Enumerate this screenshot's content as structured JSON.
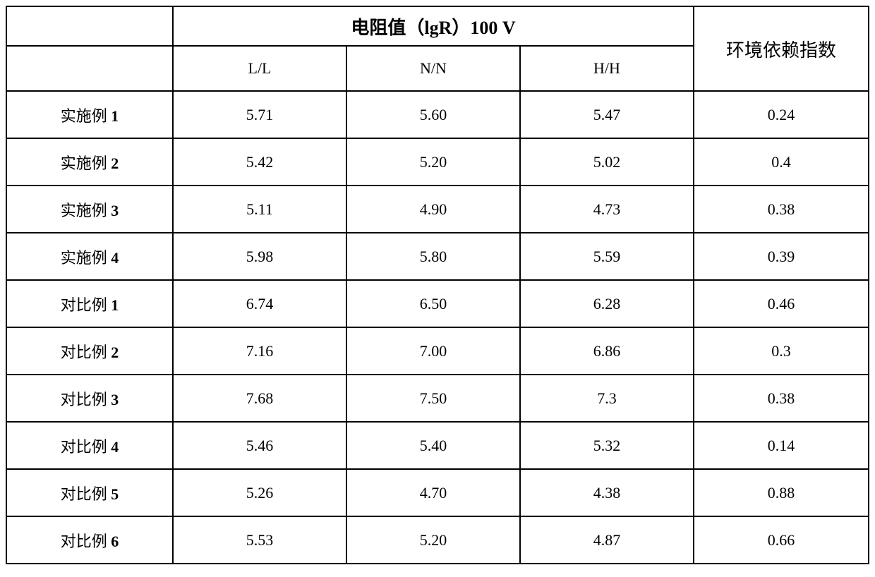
{
  "table": {
    "header": {
      "group_title": "电阻值（lgR）100 V",
      "env_label": "环境依赖指数",
      "subcols": [
        "L/L",
        "N/N",
        "H/H"
      ]
    },
    "rows": [
      {
        "label_prefix": "实施例 ",
        "label_num": "1",
        "ll": "5.71",
        "nn": "5.60",
        "hh": "5.47",
        "env": "0.24"
      },
      {
        "label_prefix": "实施例 ",
        "label_num": "2",
        "ll": "5.42",
        "nn": "5.20",
        "hh": "5.02",
        "env": "0.4"
      },
      {
        "label_prefix": "实施例 ",
        "label_num": "3",
        "ll": "5.11",
        "nn": "4.90",
        "hh": "4.73",
        "env": "0.38"
      },
      {
        "label_prefix": "实施例 ",
        "label_num": "4",
        "ll": "5.98",
        "nn": "5.80",
        "hh": "5.59",
        "env": "0.39"
      },
      {
        "label_prefix": "对比例 ",
        "label_num": "1",
        "ll": "6.74",
        "nn": "6.50",
        "hh": "6.28",
        "env": "0.46"
      },
      {
        "label_prefix": "对比例 ",
        "label_num": "2",
        "ll": "7.16",
        "nn": "7.00",
        "hh": "6.86",
        "env": "0.3"
      },
      {
        "label_prefix": "对比例 ",
        "label_num": "3",
        "ll": "7.68",
        "nn": "7.50",
        "hh": "7.3",
        "env": "0.38"
      },
      {
        "label_prefix": "对比例 ",
        "label_num": "4",
        "ll": "5.46",
        "nn": "5.40",
        "hh": "5.32",
        "env": "0.14"
      },
      {
        "label_prefix": "对比例 ",
        "label_num": "5",
        "ll": "5.26",
        "nn": "4.70",
        "hh": "4.38",
        "env": "0.88"
      },
      {
        "label_prefix": "对比例 ",
        "label_num": "6",
        "ll": "5.53",
        "nn": "5.20",
        "hh": "4.87",
        "env": "0.66"
      }
    ],
    "colors": {
      "border": "#000000",
      "background": "#ffffff",
      "text": "#000000"
    },
    "fontsizes": {
      "header_group": 26,
      "header_sub": 22,
      "body": 22
    }
  }
}
